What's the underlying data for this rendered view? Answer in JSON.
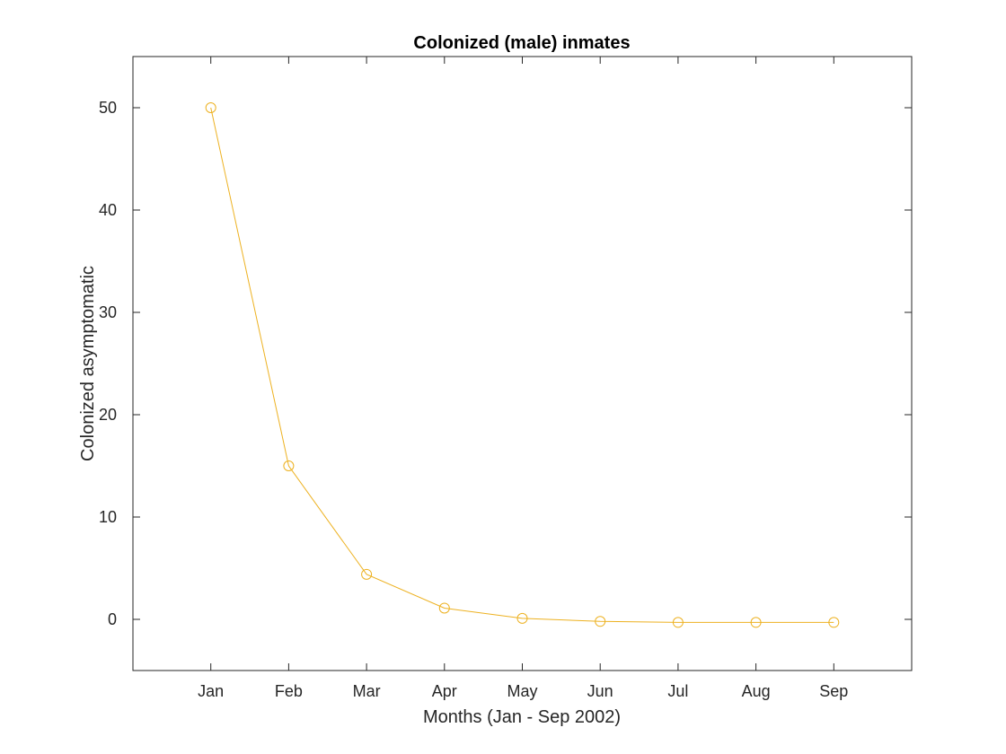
{
  "colors": {
    "series": "#EDB120",
    "axes": "#262626",
    "background": "#ffffff"
  },
  "chart_data": {
    "type": "line",
    "title": "Colonized (male) inmates",
    "xlabel": "Months (Jan - Sep 2002)",
    "ylabel": "Colonized asymptomatic",
    "categories": [
      "Jan",
      "Feb",
      "Mar",
      "Apr",
      "May",
      "Jun",
      "Jul",
      "Aug",
      "Sep"
    ],
    "x": [
      1,
      2,
      3,
      4,
      5,
      6,
      7,
      8,
      9
    ],
    "xlim": [
      0,
      10
    ],
    "ylim": [
      -5,
      55
    ],
    "yticks": [
      0,
      10,
      20,
      30,
      40,
      50
    ],
    "grid": false,
    "legend": null,
    "series": [
      {
        "name": "Colonized asymptomatic",
        "marker": "circle",
        "values": [
          50,
          15,
          4.4,
          1.1,
          0.1,
          -0.2,
          -0.3,
          -0.3,
          -0.3
        ]
      }
    ]
  }
}
